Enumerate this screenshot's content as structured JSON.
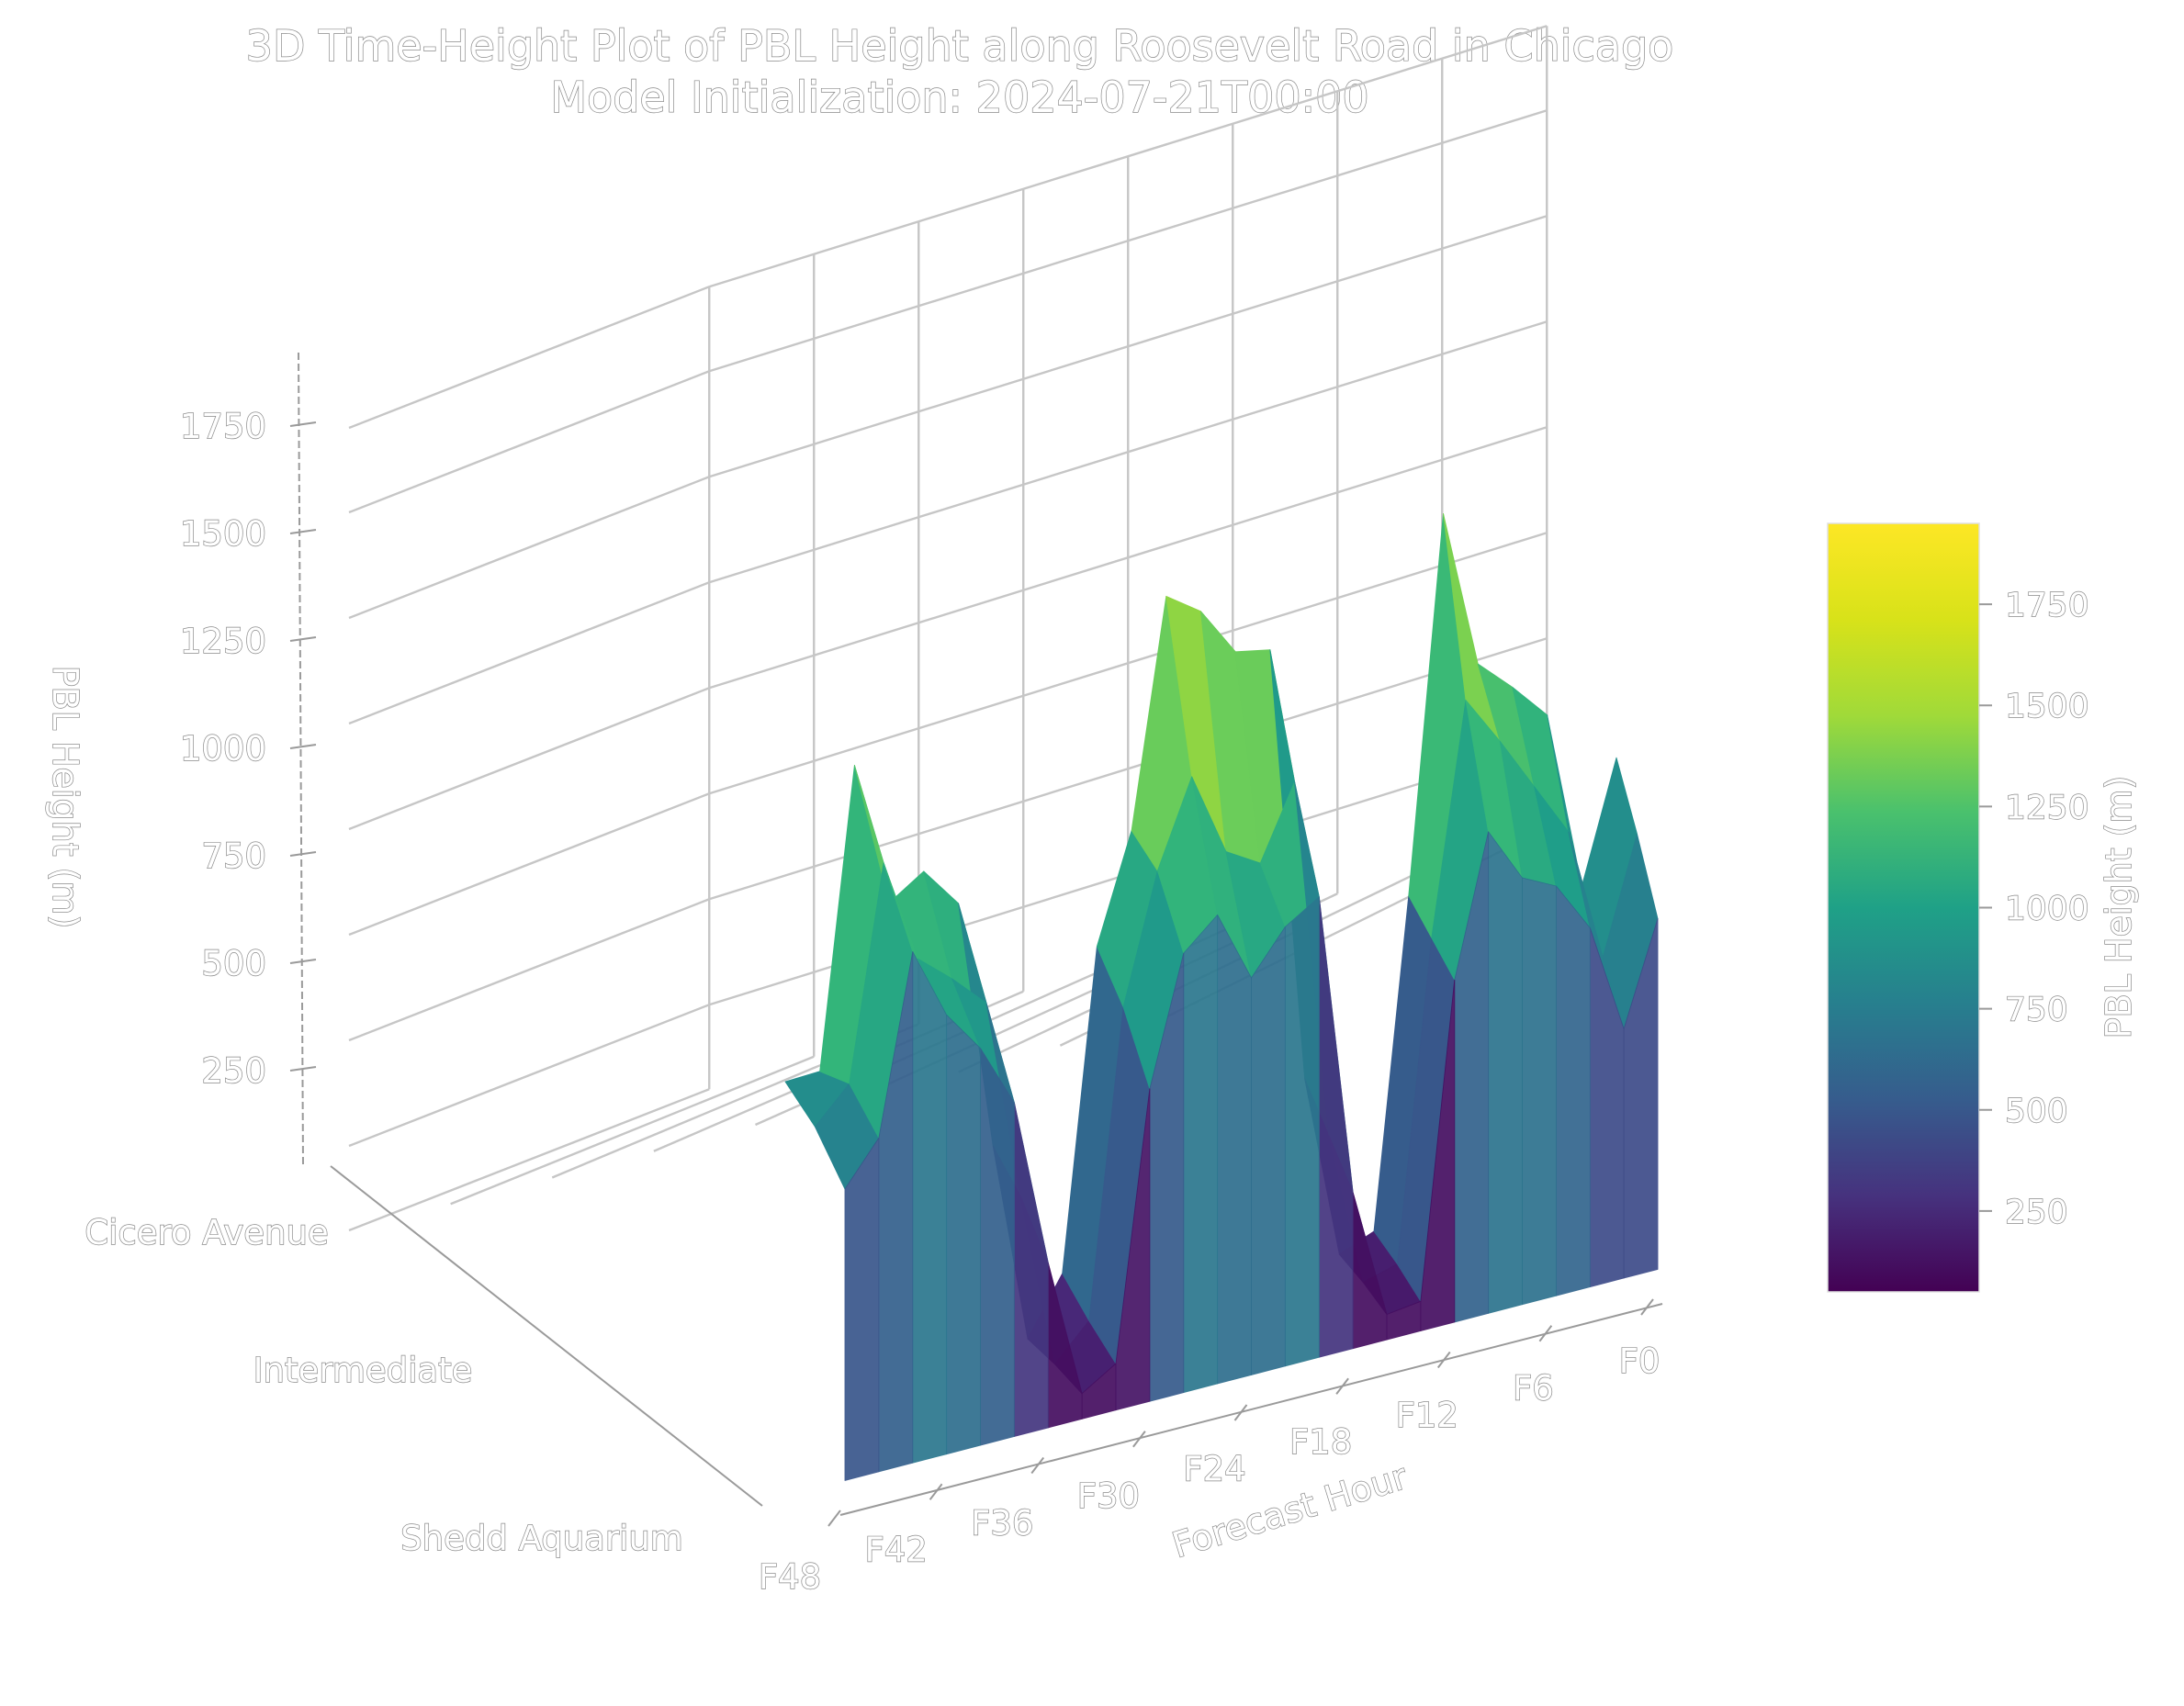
{
  "chart_data": {
    "type": "surface3d",
    "title": "3D Time-Height Plot of PBL Height along Roosevelt Road in Chicago",
    "subtitle": "Model Initialization: 2024-07-21T00:00",
    "xlabel": "Forecast Hour",
    "ylabel": "",
    "zlabel": "PBL Height (m)",
    "colorbar_label": "PBL Height (m)",
    "colorscale": "viridis",
    "x_ticks": [
      "F0",
      "F6",
      "F12",
      "F18",
      "F24",
      "F30",
      "F36",
      "F42",
      "F48"
    ],
    "y_ticks": [
      "Cicero Avenue",
      "Intermediate",
      "Shedd Aquarium"
    ],
    "z_ticks": [
      "250",
      "500",
      "750",
      "1000",
      "1250",
      "1500",
      "1750"
    ],
    "z_tick_values": [
      250,
      500,
      750,
      1000,
      1250,
      1500,
      1750
    ],
    "zlim": [
      50,
      1950
    ],
    "colorbar_ticks": [
      "250",
      "500",
      "750",
      "1000",
      "1250",
      "1500",
      "1750"
    ],
    "colorbar_range": [
      50,
      1950
    ],
    "forecast_hours": [
      0,
      2,
      4,
      6,
      8,
      10,
      12,
      14,
      16,
      18,
      20,
      22,
      24,
      26,
      28,
      30,
      32,
      34,
      36,
      38,
      40,
      42,
      44,
      46,
      48
    ],
    "locations": [
      "Cicero Avenue",
      "Intermediate",
      "Shedd Aquarium"
    ],
    "z": [
      [
        1180,
        900,
        1330,
        1420,
        1500,
        1880,
        1000,
        230,
        200,
        640,
        1680,
        1700,
        1820,
        1880,
        1350,
        1100,
        350,
        220,
        700,
        1300,
        1400,
        1350,
        1700,
        1000,
        1000
      ],
      [
        1070,
        800,
        1120,
        1250,
        1380,
        1500,
        960,
        210,
        190,
        560,
        1420,
        1250,
        1300,
        1500,
        1300,
        1000,
        280,
        200,
        620,
        1100,
        1180,
        1250,
        1500,
        1000,
        920
      ],
      [
        940,
        700,
        960,
        1080,
        1120,
        1250,
        920,
        180,
        170,
        480,
        1200,
        1150,
        1050,
        1220,
        1150,
        850,
        220,
        170,
        500,
        900,
        1050,
        1150,
        1320,
        900,
        800
      ]
    ]
  }
}
